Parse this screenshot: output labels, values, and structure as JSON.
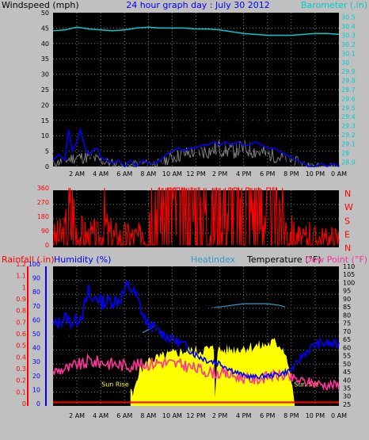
{
  "title": "24 hour graph day : July 30 2012",
  "colors": {
    "background": "#c0c0c0",
    "plot_bg": "#000000",
    "grid": "#808080",
    "wind_gust": "#000000",
    "wind_avg": "#0000ff",
    "wind_max": "#808080",
    "barometer": "#00cccc",
    "direction": "#ff0000",
    "temperature": "#000000",
    "humidity": "#0000ff",
    "heatindex": "#3399cc",
    "dewpoint": "#ff3399",
    "solar": "#ffff00",
    "rain": "#ff0000",
    "label_blue": "#0000ff",
    "label_red": "#ff0000"
  },
  "x_ticks": [
    "2 AM",
    "4 AM",
    "6 AM",
    "8 AM",
    "10 AM",
    "12 PM",
    "2 PM",
    "4 PM",
    "6 PM",
    "8 PM",
    "10 PM",
    "0 AM"
  ],
  "chart_data": [
    {
      "type": "line",
      "name": "wind_barometer",
      "ylabel_left": "Windspeed (mph)",
      "ylabel_right": "Barometer (.in)",
      "y_left_ticks": [
        "0",
        "5",
        "10",
        "15",
        "20",
        "25",
        "30",
        "35",
        "40",
        "45",
        "50"
      ],
      "y_right_ticks": [
        "28.9",
        "29",
        "29.1",
        "29.2",
        "29.3",
        "29.4",
        "29.5",
        "29.6",
        "29.7",
        "29.8",
        "29.9",
        "30",
        "30.1",
        "30.2",
        "30.3",
        "30.4",
        "30.5"
      ],
      "y_left_range": [
        0,
        50
      ],
      "y_right_range": [
        28.85,
        30.55
      ],
      "x_range": [
        0,
        24
      ],
      "grid": true,
      "series": [
        {
          "key": "gust",
          "x": [
            0,
            0.5,
            1,
            1.3,
            1.6,
            2,
            2.3,
            2.7,
            3,
            3.3,
            3.7,
            4,
            4.5,
            5,
            5.5,
            6,
            6.5,
            7,
            7.5,
            8,
            8.5,
            9,
            9.5,
            10,
            10.5,
            11,
            11.5,
            12,
            12.5,
            13,
            13.5,
            14,
            14.5,
            15,
            15.5,
            16,
            16.5,
            17,
            17.5,
            18,
            18.5,
            19,
            19.5,
            20,
            20.5,
            21,
            21.5,
            22,
            22.5,
            23,
            23.5,
            24
          ],
          "values": [
            4,
            7,
            4,
            18,
            9,
            12,
            16,
            10,
            6,
            8,
            10,
            5,
            3,
            2,
            4,
            1,
            3,
            1,
            4,
            2,
            2,
            3,
            6,
            8,
            9,
            8,
            10,
            9,
            12,
            11,
            13,
            12,
            14,
            12,
            13,
            12,
            11,
            12,
            11,
            9,
            10,
            8,
            7,
            5,
            3,
            2,
            1,
            1,
            2,
            1,
            2,
            1
          ]
        },
        {
          "key": "avg",
          "x": [
            0,
            0.5,
            1,
            1.3,
            1.6,
            2,
            2.3,
            2.7,
            3,
            3.3,
            3.7,
            4,
            4.5,
            5,
            5.5,
            6,
            6.5,
            7,
            7.5,
            8,
            8.5,
            9,
            9.5,
            10,
            10.5,
            11,
            11.5,
            12,
            12.5,
            13,
            13.5,
            14,
            14.5,
            15,
            15.5,
            16,
            16.5,
            17,
            17.5,
            18,
            18.5,
            19,
            19.5,
            20,
            20.5,
            21,
            21.5,
            22,
            22.5,
            23,
            23.5,
            24
          ],
          "values": [
            2,
            4,
            2,
            12,
            5,
            8,
            12,
            6,
            4,
            5,
            6,
            3,
            2,
            1,
            2,
            0,
            2,
            0,
            2,
            1,
            1,
            2,
            4,
            5,
            6,
            5,
            6,
            6,
            7,
            7,
            8,
            7,
            8,
            7,
            8,
            7,
            7,
            8,
            7,
            6,
            6,
            5,
            4,
            3,
            2,
            1,
            0,
            0,
            1,
            0,
            1,
            0
          ]
        },
        {
          "key": "max",
          "x": [
            0,
            1,
            2,
            3,
            4,
            5,
            6,
            7,
            8,
            9,
            10,
            11,
            12,
            13,
            14,
            15,
            16,
            17,
            18,
            19,
            20,
            21,
            22,
            23,
            24
          ],
          "values": [
            1,
            2,
            3,
            3,
            2,
            1,
            0,
            1,
            1,
            1,
            3,
            4,
            5,
            5,
            6,
            5,
            6,
            5,
            4,
            3,
            2,
            1,
            0,
            0,
            0
          ]
        },
        {
          "key": "barometer",
          "axis": "right",
          "x": [
            0,
            1,
            2,
            3,
            4,
            5,
            6,
            7,
            8,
            9,
            10,
            11,
            12,
            13,
            14,
            15,
            16,
            17,
            18,
            19,
            20,
            21,
            22,
            23,
            24
          ],
          "values": [
            30.35,
            30.36,
            30.39,
            30.37,
            30.36,
            30.35,
            30.36,
            30.38,
            30.39,
            30.38,
            30.38,
            30.38,
            30.37,
            30.37,
            30.36,
            30.34,
            30.32,
            30.31,
            30.3,
            30.3,
            30.3,
            30.31,
            30.32,
            30.32,
            30.31
          ]
        }
      ]
    },
    {
      "type": "line",
      "name": "wind_direction",
      "y_ticks": [
        "0",
        "90",
        "180",
        "270",
        "360"
      ],
      "y_range": [
        0,
        360
      ],
      "compass_labels": [
        "N",
        "W",
        "S",
        "E",
        "N"
      ],
      "x_range": [
        0,
        24
      ],
      "grid": true,
      "series": [
        {
          "key": "direction",
          "x": [
            0,
            0.5,
            1,
            1.2,
            1.5,
            2,
            2.5,
            3,
            3.5,
            4,
            4.3,
            4.6,
            5,
            5.5,
            6,
            6.5,
            7,
            7.4,
            7.6,
            7.8,
            8,
            8.5,
            9,
            9.5,
            10,
            10.5,
            11,
            11.5,
            12,
            12.5,
            13,
            13.5,
            14,
            14.5,
            15,
            15.5,
            16,
            16.5,
            17,
            17.5,
            18,
            18.5,
            19,
            19.5,
            20,
            20.5,
            21,
            21.5,
            22,
            22.5,
            23,
            23.5,
            24
          ],
          "values": [
            40,
            50,
            60,
            120,
            200,
            80,
            55,
            45,
            50,
            40,
            140,
            60,
            50,
            45,
            45,
            45,
            45,
            40,
            360,
            290,
            320,
            310,
            290,
            270,
            280,
            250,
            230,
            260,
            250,
            240,
            260,
            270,
            250,
            270,
            280,
            270,
            290,
            280,
            270,
            280,
            290,
            270,
            240,
            100,
            60,
            40,
            30,
            60,
            35,
            40,
            30,
            40,
            35
          ]
        }
      ]
    },
    {
      "type": "line",
      "name": "temp_humidity",
      "ylabel_left_rain": "Rainfall (.in)",
      "ylabel_left_hum": "Humidity (%)",
      "label_heatindex": "Heatindex",
      "label_temperature": "Temperature (°F)",
      "label_dewpoint": "Dew Point (°F)",
      "label_sunrise": "Sun Rise",
      "label_sunset": "Sun Set",
      "rain_ticks": [
        "0",
        "0.1",
        "0.2",
        "0.3",
        "0.4",
        "0.5",
        "0.6",
        "0.7",
        "0.8",
        "0.9",
        "1",
        "1.1",
        "1.2"
      ],
      "hum_ticks": [
        "0",
        "10",
        "20",
        "30",
        "40",
        "50",
        "60",
        "70",
        "80",
        "90",
        "100"
      ],
      "temp_ticks": [
        "25",
        "30",
        "35",
        "40",
        "45",
        "50",
        "55",
        "60",
        "65",
        "70",
        "75",
        "80",
        "85",
        "90",
        "95",
        "100",
        "105",
        "110"
      ],
      "rain_range": [
        0,
        1.2
      ],
      "hum_range": [
        0,
        100
      ],
      "temp_range": [
        24,
        110
      ],
      "x_range": [
        0,
        24
      ],
      "sunrise_hour": 6.5,
      "sunset_hour": 20.3,
      "grid": true,
      "series": [
        {
          "key": "temperature",
          "axis": "temp",
          "x": [
            0,
            0.5,
            1,
            1.5,
            2,
            2.5,
            3,
            3.5,
            4,
            4.5,
            5,
            5.5,
            6,
            6.5,
            7,
            7.5,
            8,
            9,
            10,
            11,
            12,
            13,
            14,
            15,
            16,
            17,
            18,
            19,
            19.5,
            20,
            20.5,
            21,
            21.5,
            22,
            23,
            24
          ],
          "values": [
            68,
            67,
            67,
            68,
            62,
            63,
            66,
            63,
            62,
            62,
            61,
            60,
            58,
            55,
            62,
            67,
            70,
            74,
            78,
            81,
            83,
            85,
            86,
            87,
            88,
            88,
            88,
            87,
            86,
            85,
            80,
            76,
            72,
            70,
            68,
            68
          ]
        },
        {
          "key": "humidity",
          "axis": "hum",
          "x": [
            0,
            0.5,
            1,
            1.3,
            1.6,
            2,
            2.5,
            3,
            3.3,
            3.6,
            4,
            4.5,
            5,
            5.5,
            6,
            6.3,
            6.6,
            7,
            7.3,
            7.6,
            8,
            9,
            10,
            11,
            12,
            13,
            14,
            15,
            16,
            17,
            18,
            19,
            20,
            20.5,
            21,
            21.5,
            22,
            22.5,
            23,
            24
          ],
          "values": [
            56,
            58,
            62,
            60,
            58,
            60,
            65,
            80,
            72,
            78,
            73,
            73,
            74,
            74,
            80,
            84,
            82,
            76,
            70,
            62,
            57,
            51,
            46,
            42,
            35,
            31,
            29,
            24,
            20,
            19,
            20,
            21,
            24,
            29,
            35,
            39,
            42,
            43,
            43,
            42
          ]
        },
        {
          "key": "heatindex",
          "axis": "temp",
          "x": [
            7.5,
            8,
            9,
            10,
            11,
            12,
            13,
            14,
            15,
            16,
            17,
            18,
            19,
            19.5
          ],
          "values": [
            69,
            71,
            74,
            78,
            81,
            83,
            85,
            85,
            86,
            87,
            87,
            87,
            86,
            85
          ]
        },
        {
          "key": "dewpoint",
          "axis": "temp",
          "x": [
            0,
            0.5,
            1,
            1.5,
            2,
            2.5,
            3,
            3.5,
            4,
            5,
            6,
            7,
            8,
            9,
            10,
            11,
            12,
            13,
            14,
            15,
            16,
            17,
            18,
            19,
            20,
            21,
            22,
            23,
            24
          ],
          "values": [
            45,
            46,
            47,
            47,
            50,
            49,
            52,
            51,
            51,
            50,
            49,
            49,
            50,
            51,
            50,
            49,
            47,
            45,
            44,
            43,
            41,
            40,
            42,
            43,
            41,
            39,
            38,
            37,
            37
          ]
        },
        {
          "key": "solar",
          "axis": "temp",
          "x": [
            6.5,
            6.7,
            7,
            7.3,
            7.5,
            8,
            9,
            10,
            11,
            12,
            13,
            13.5,
            13.6,
            13.8,
            14,
            15,
            16,
            17,
            17.5,
            18,
            18.5,
            19,
            19.5,
            20,
            20.3
          ],
          "values": [
            35,
            30,
            40,
            48,
            47,
            52,
            54,
            56,
            58,
            58,
            59,
            59,
            30,
            59,
            58,
            59,
            60,
            61,
            61,
            62,
            63,
            62,
            58,
            40,
            24
          ]
        },
        {
          "key": "rain",
          "axis": "rain",
          "x": [
            0,
            24
          ],
          "values": [
            0.01,
            0.01
          ]
        }
      ]
    }
  ]
}
